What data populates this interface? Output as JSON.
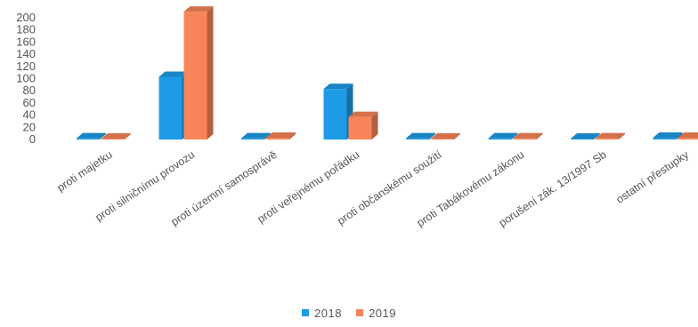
{
  "chart_data": {
    "type": "bar",
    "categories": [
      "proti majetku",
      "proti silničnímu provozu",
      "proti územní samosprávě",
      "proti veřejnému pořádku",
      "proti občanskému soužití",
      "proti Tabákovému zákonu",
      "porušení zák. 13/1997 Sb",
      "ostatní přestupky"
    ],
    "series": [
      {
        "name": "2018",
        "color": "#1e9be6",
        "values": [
          2,
          103,
          2,
          83,
          2,
          2,
          1,
          3
        ]
      },
      {
        "name": "2019",
        "color": "#f88559",
        "values": [
          1,
          210,
          3,
          37,
          1,
          2,
          2,
          3
        ]
      }
    ],
    "y_ticks": [
      "0",
      "20",
      "40",
      "60",
      "80",
      "100",
      "120",
      "140",
      "160",
      "180",
      "200"
    ],
    "ylim": [
      0,
      200
    ],
    "grid": false,
    "legend_position": "bottom",
    "style_3d": true
  }
}
